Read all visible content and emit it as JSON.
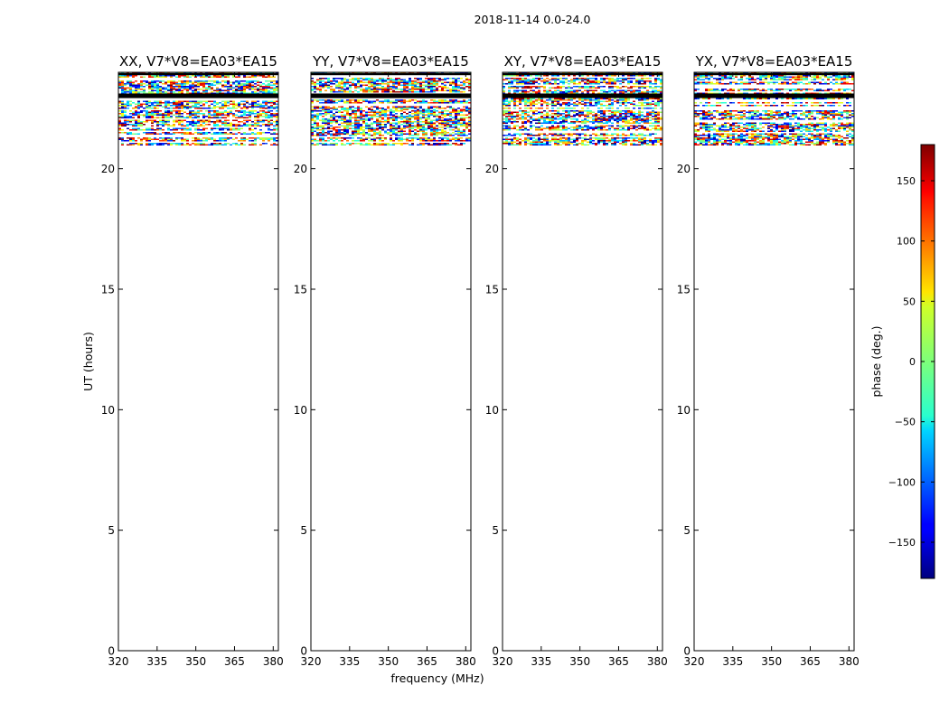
{
  "figure": {
    "suptitle": "2018-11-14 0.0-24.0",
    "xlabel": "frequency (MHz)",
    "ylabel": "UT (hours)"
  },
  "chart_data": {
    "type": "heatmap",
    "xlim": [
      320,
      382
    ],
    "ylim": [
      0,
      24
    ],
    "xticks": [
      320,
      335,
      350,
      365,
      380
    ],
    "yticks": [
      0,
      5,
      10,
      15,
      20
    ],
    "data_time_range_hours": [
      21.0,
      24.0
    ],
    "flagged_rows_hours": [
      {
        "start": 22.93,
        "end": 23.12
      },
      {
        "start": 23.88,
        "end": 23.97
      }
    ],
    "panels": [
      {
        "title": "XX, V7*V8=EA03*EA15",
        "seed": 11
      },
      {
        "title": "YY, V7*V8=EA03*EA15",
        "seed": 23
      },
      {
        "title": "XY, V7*V8=EA03*EA15",
        "seed": 37
      },
      {
        "title": "YX, V7*V8=EA03*EA15",
        "seed": 53
      }
    ],
    "colorbar": {
      "label": "phase (deg.)",
      "colormap": "jet",
      "range": [
        -180,
        180
      ],
      "ticks": [
        150,
        100,
        50,
        0,
        -50,
        -100,
        -150
      ]
    }
  }
}
